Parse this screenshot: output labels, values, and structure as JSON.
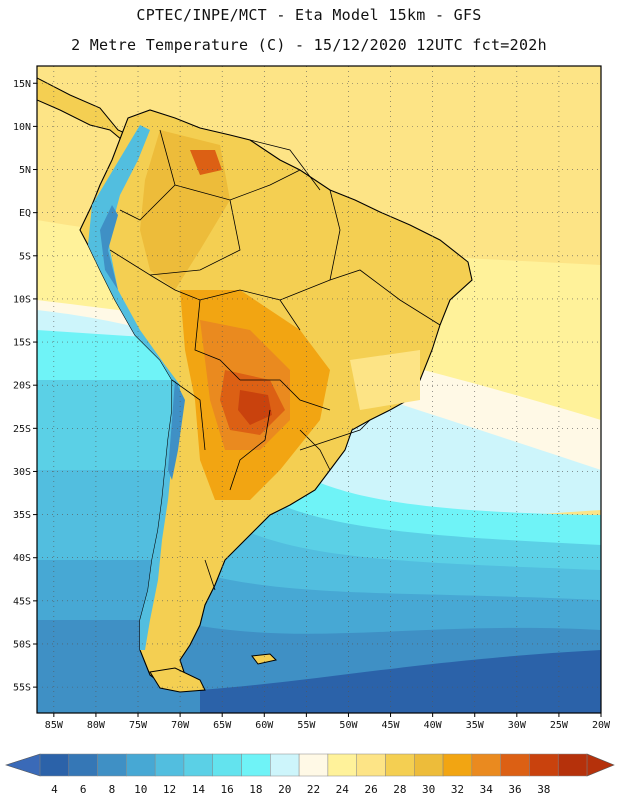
{
  "header": {
    "line1": "CPTEC/INPE/MCT -  Eta Model 15km - GFS",
    "line2": "2 Metre Temperature (C) - 15/12/2020 12UTC fct=202h"
  },
  "map": {
    "lon_range": [
      -87,
      -20
    ],
    "lat_range": [
      -58,
      17
    ],
    "lon_ticks": [
      "85W",
      "80W",
      "75W",
      "70W",
      "65W",
      "60W",
      "55W",
      "50W",
      "45W",
      "40W",
      "35W",
      "30W",
      "25W",
      "20W"
    ],
    "lon_values": [
      -85,
      -80,
      -75,
      -70,
      -65,
      -60,
      -55,
      -50,
      -45,
      -40,
      -35,
      -30,
      -25,
      -20
    ],
    "lat_ticks": [
      "15N",
      "10N",
      "5N",
      "EQ",
      "5S",
      "10S",
      "15S",
      "20S",
      "25S",
      "30S",
      "35S",
      "40S",
      "45S",
      "50S",
      "55S"
    ],
    "lat_values": [
      15,
      10,
      5,
      0,
      -5,
      -10,
      -15,
      -20,
      -25,
      -30,
      -35,
      -40,
      -45,
      -50,
      -55
    ],
    "gridlines": "dotted"
  },
  "colorbar": {
    "labels": [
      "4",
      "6",
      "8",
      "10",
      "12",
      "14",
      "16",
      "18",
      "20",
      "22",
      "24",
      "26",
      "28",
      "30",
      "32",
      "34",
      "36",
      "38"
    ],
    "colors": [
      "#2b62a9",
      "#3577b6",
      "#3f90c5",
      "#47a8d4",
      "#52bedf",
      "#5bd0e6",
      "#63e3ee",
      "#6ff3f7",
      "#cdf5fb",
      "#fff9e6",
      "#fff29a",
      "#fde486",
      "#f4cf52",
      "#edbc3a",
      "#f2a512",
      "#ea8a1f",
      "#dc6014",
      "#c9420d",
      "#b5310b"
    ],
    "low_arrow_color": "#3a6ab8",
    "high_arrow_color": "#b5310b"
  },
  "colors": {
    "ocean_north": "#fde486",
    "ocean_coastal_north": "#fff29a",
    "land_base": "#f4cf52",
    "coast": "#000000"
  }
}
